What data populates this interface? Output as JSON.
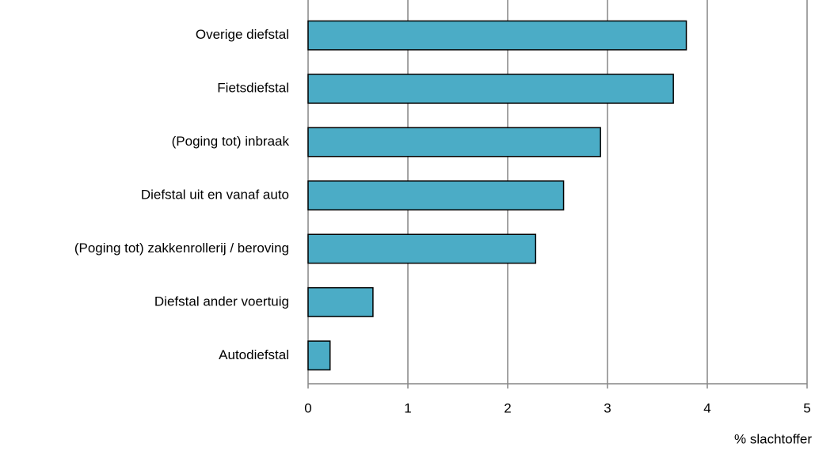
{
  "chart_data": {
    "type": "bar",
    "orientation": "horizontal",
    "categories": [
      "Overige diefstal",
      "Fietsdiefstal",
      "(Poging tot) inbraak",
      "Diefstal uit en vanaf auto",
      "(Poging tot) zakkenrollerij / beroving",
      "Diefstal ander voertuig",
      "Autodiefstal"
    ],
    "values": [
      3.79,
      3.66,
      2.93,
      2.56,
      2.28,
      0.65,
      0.22
    ],
    "color": "#4bacc6",
    "x_label": "% slachtoffer",
    "xlim": [
      0,
      5
    ],
    "xticks": [
      0,
      1,
      2,
      3,
      4,
      5
    ],
    "grid": true
  }
}
